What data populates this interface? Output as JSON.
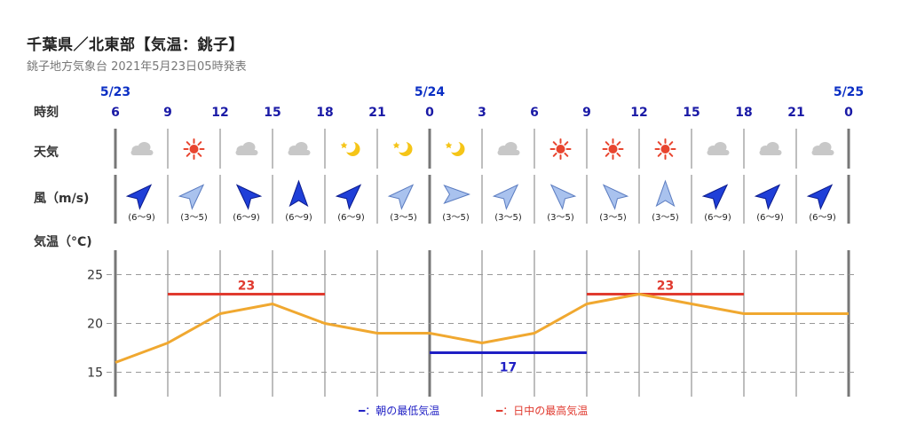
{
  "header": {
    "title": "千葉県／北東部【気温：銚子】",
    "subtitle": "銚子地方気象台 2021年5月23日05時発表"
  },
  "labels": {
    "time": "時刻",
    "weather": "天気",
    "wind": "風（m/s)",
    "temp": "気温（°C)"
  },
  "times": [
    {
      "hour": "6",
      "date": "5/23",
      "day_start": true
    },
    {
      "hour": "9"
    },
    {
      "hour": "12"
    },
    {
      "hour": "15"
    },
    {
      "hour": "18"
    },
    {
      "hour": "21"
    },
    {
      "hour": "0",
      "date": "5/24",
      "day_start": true
    },
    {
      "hour": "3"
    },
    {
      "hour": "6"
    },
    {
      "hour": "9"
    },
    {
      "hour": "12"
    },
    {
      "hour": "15"
    },
    {
      "hour": "18"
    },
    {
      "hour": "21"
    },
    {
      "hour": "0",
      "date": "5/25",
      "day_start": true
    }
  ],
  "weather": [
    "cloudy-icon",
    "sunny-icon",
    "cloudy-icon",
    "cloudy-icon",
    "clear-night-icon",
    "clear-night-icon",
    "clear-night-icon",
    "cloudy-icon",
    "sunny-icon",
    "sunny-icon",
    "sunny-icon",
    "cloudy-icon",
    "cloudy-icon",
    "cloudy-icon"
  ],
  "wind": [
    {
      "dir": "NE",
      "speed": "(6〜9)",
      "strong": true
    },
    {
      "dir": "NE",
      "speed": "(3〜5)",
      "strong": false
    },
    {
      "dir": "NW",
      "speed": "(6〜9)",
      "strong": true
    },
    {
      "dir": "N",
      "speed": "(6〜9)",
      "strong": true
    },
    {
      "dir": "NE",
      "speed": "(6〜9)",
      "strong": true
    },
    {
      "dir": "NE",
      "speed": "(3〜5)",
      "strong": false
    },
    {
      "dir": "E",
      "speed": "(3〜5)",
      "strong": false
    },
    {
      "dir": "NE",
      "speed": "(3〜5)",
      "strong": false
    },
    {
      "dir": "NW",
      "speed": "(3〜5)",
      "strong": false
    },
    {
      "dir": "NW",
      "speed": "(3〜5)",
      "strong": false
    },
    {
      "dir": "N",
      "speed": "(3〜5)",
      "strong": false
    },
    {
      "dir": "NE",
      "speed": "(6〜9)",
      "strong": true
    },
    {
      "dir": "NE",
      "speed": "(6〜9)",
      "strong": true
    },
    {
      "dir": "NE",
      "speed": "(6〜9)",
      "strong": true
    }
  ],
  "chart_data": {
    "type": "line",
    "x": [
      "5/23 6",
      "9",
      "12",
      "15",
      "18",
      "21",
      "5/24 0",
      "3",
      "6",
      "9",
      "12",
      "15",
      "18",
      "21",
      "5/25 0"
    ],
    "series": [
      {
        "values": [
          16,
          18,
          21,
          22,
          20,
          19,
          19,
          18,
          19,
          22,
          23,
          22,
          21,
          21,
          21
        ],
        "color": "#f0a830"
      }
    ],
    "yticks": [
      15,
      20,
      25
    ],
    "ylim": [
      12.5,
      27.5
    ],
    "grid": true,
    "bands": [
      {
        "label": "23",
        "value": 23,
        "from": 1,
        "to": 4,
        "color": "#e03a2f"
      },
      {
        "label": "17",
        "value": 17,
        "from": 6,
        "to": 9,
        "color": "#1f1fc4"
      },
      {
        "label": "23",
        "value": 23,
        "from": 9,
        "to": 12,
        "color": "#e03a2f"
      }
    ]
  },
  "legend": {
    "min": {
      "label": "━：朝の最低気温",
      "color": "#1f1fc4"
    },
    "max": {
      "label": "━：日中の最高気温",
      "color": "#e03a2f"
    }
  }
}
